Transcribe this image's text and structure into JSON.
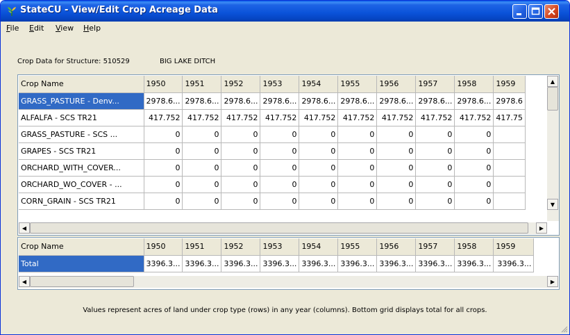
{
  "window": {
    "title": "StateCU - View/Edit Crop Acreage Data"
  },
  "menu": {
    "items": [
      {
        "first": "F",
        "rest": "ile"
      },
      {
        "first": "E",
        "rest": "dit"
      },
      {
        "first": "V",
        "rest": "iew"
      },
      {
        "first": "H",
        "rest": "elp"
      }
    ]
  },
  "info": {
    "structure_label": "Crop Data for Structure: 510529",
    "structure_name": "BIG LAKE DITCH"
  },
  "crop_grid": {
    "columns": [
      "Crop Name",
      "1950",
      "1951",
      "1952",
      "1953",
      "1954",
      "1955",
      "1956",
      "1957",
      "1958",
      "1959"
    ],
    "selected_row": 0,
    "rows": [
      [
        "GRASS_PASTURE - Denv...",
        "2978.6...",
        "2978.6...",
        "2978.6...",
        "2978.6...",
        "2978.6...",
        "2978.6...",
        "2978.6...",
        "2978.6...",
        "2978.6...",
        "2978.6"
      ],
      [
        "ALFALFA - SCS TR21",
        "417.752",
        "417.752",
        "417.752",
        "417.752",
        "417.752",
        "417.752",
        "417.752",
        "417.752",
        "417.752",
        "417.75"
      ],
      [
        "GRASS_PASTURE - SCS ...",
        "0",
        "0",
        "0",
        "0",
        "0",
        "0",
        "0",
        "0",
        "0",
        ""
      ],
      [
        "GRAPES - SCS TR21",
        "0",
        "0",
        "0",
        "0",
        "0",
        "0",
        "0",
        "0",
        "0",
        ""
      ],
      [
        "ORCHARD_WITH_COVER...",
        "0",
        "0",
        "0",
        "0",
        "0",
        "0",
        "0",
        "0",
        "0",
        ""
      ],
      [
        "ORCHARD_WO_COVER - ...",
        "0",
        "0",
        "0",
        "0",
        "0",
        "0",
        "0",
        "0",
        "0",
        ""
      ],
      [
        "CORN_GRAIN - SCS TR21",
        "0",
        "0",
        "0",
        "0",
        "0",
        "0",
        "0",
        "0",
        "0",
        ""
      ]
    ]
  },
  "total_grid": {
    "columns": [
      "Crop Name",
      "1950",
      "1951",
      "1952",
      "1953",
      "1954",
      "1955",
      "1956",
      "1957",
      "1958",
      "1959"
    ],
    "rows": [
      [
        "Total",
        "3396.3...",
        "3396.3...",
        "3396.3...",
        "3396.3...",
        "3396.3...",
        "3396.3...",
        "3396.3...",
        "3396.3...",
        "3396.3...",
        "3396.3..."
      ]
    ]
  },
  "footer": {
    "note": "Values represent acres of land under crop type (rows) in any year (columns). Bottom grid displays total for all crops."
  },
  "colors": {
    "titlebar": "#0a52d8",
    "selection": "#316ac5",
    "window_bg": "#ece9d8",
    "close_button": "#d2431c"
  }
}
